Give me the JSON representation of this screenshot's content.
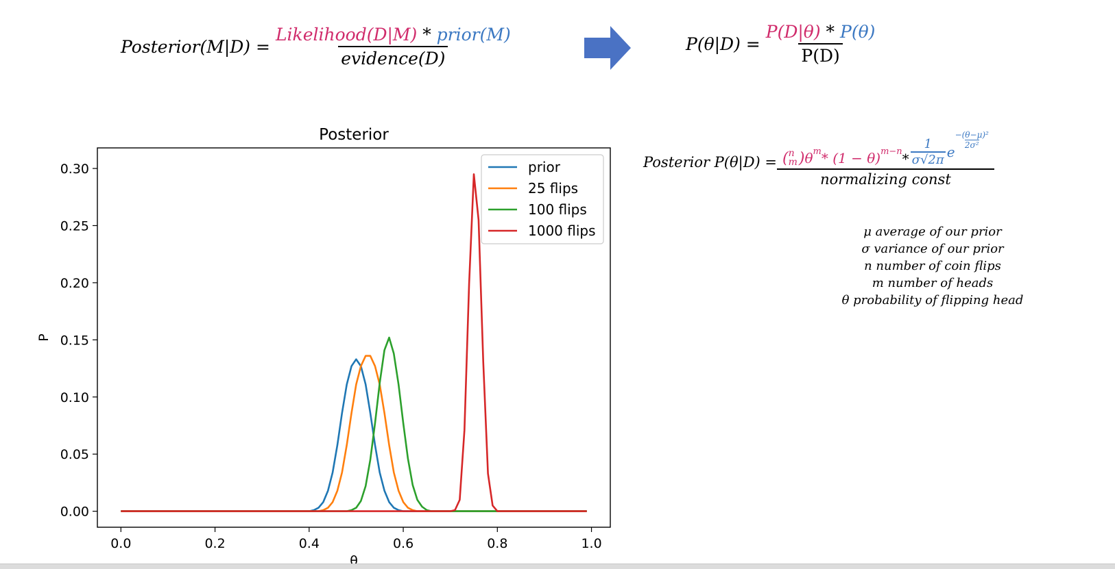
{
  "equations": {
    "left": {
      "lhs": "Posterior(M|D) =",
      "likelihood": "Likelihood(D|M)",
      "times": " * ",
      "prior": "prior(M)",
      "denominator": "evidence(D)"
    },
    "right": {
      "lhs": "P(θ|D) =",
      "p_d_theta": "P(D|θ)",
      "times": " * ",
      "p_theta": "P(θ)",
      "denominator": "P(D)"
    },
    "posterior_formula": {
      "lhs": "Posterior P(θ|D) =",
      "binom_top": "n",
      "binom_bottom": "m",
      "theta_m": "θ",
      "sup_m": "m",
      "times1": " * (1 − θ)",
      "sup_mn": "m−n",
      "times2": " * ",
      "frac_num": "1",
      "frac_den": "σ√2π",
      "e": "e",
      "exp_num": "−(θ−μ)²",
      "exp_den": "2σ²",
      "denominator": "normalizing const"
    },
    "definitions": [
      "μ average of our prior",
      "σ variance of our prior",
      "n number of coin flips",
      "m number of heads",
      "θ probability of flipping head"
    ]
  },
  "colors": {
    "pink": "#d02b6b",
    "blue": "#3b78c2",
    "arrow": "#4a72c4"
  },
  "chart_data": {
    "type": "line",
    "title": "Posterior",
    "xlabel": "θ",
    "ylabel": "P",
    "xlim": [
      -0.05,
      1.04
    ],
    "ylim": [
      -0.014,
      0.318
    ],
    "xticks": [
      0.0,
      0.2,
      0.4,
      0.6,
      0.8,
      1.0
    ],
    "xtick_labels": [
      "0.0",
      "0.2",
      "0.4",
      "0.6",
      "0.8",
      "1.0"
    ],
    "yticks": [
      0.0,
      0.05,
      0.1,
      0.15,
      0.2,
      0.25,
      0.3
    ],
    "ytick_labels": [
      "0.00",
      "0.05",
      "0.10",
      "0.15",
      "0.20",
      "0.25",
      "0.30"
    ],
    "grid": false,
    "legend_position": "top-right",
    "series": [
      {
        "name": "prior",
        "color": "#1f77b4",
        "x": [
          0.0,
          0.4,
          0.41,
          0.42,
          0.43,
          0.44,
          0.45,
          0.46,
          0.47,
          0.48,
          0.49,
          0.5,
          0.51,
          0.52,
          0.53,
          0.54,
          0.55,
          0.56,
          0.57,
          0.58,
          0.59,
          0.6,
          0.99
        ],
        "y": [
          0.0,
          0.0,
          0.001,
          0.003,
          0.008,
          0.018,
          0.034,
          0.058,
          0.086,
          0.111,
          0.127,
          0.133,
          0.127,
          0.111,
          0.086,
          0.058,
          0.034,
          0.018,
          0.008,
          0.003,
          0.001,
          0.0,
          0.0
        ]
      },
      {
        "name": "25 flips",
        "color": "#ff7f0e",
        "x": [
          0.0,
          0.42,
          0.43,
          0.44,
          0.45,
          0.46,
          0.47,
          0.48,
          0.49,
          0.5,
          0.51,
          0.52,
          0.53,
          0.54,
          0.55,
          0.56,
          0.57,
          0.58,
          0.59,
          0.6,
          0.61,
          0.62,
          0.63,
          0.99
        ],
        "y": [
          0.0,
          0.0,
          0.001,
          0.003,
          0.008,
          0.018,
          0.034,
          0.058,
          0.086,
          0.111,
          0.127,
          0.136,
          0.136,
          0.127,
          0.111,
          0.086,
          0.058,
          0.034,
          0.018,
          0.008,
          0.003,
          0.001,
          0.0,
          0.0
        ]
      },
      {
        "name": "100 flips",
        "color": "#2ca02c",
        "x": [
          0.0,
          0.48,
          0.49,
          0.5,
          0.51,
          0.52,
          0.53,
          0.54,
          0.55,
          0.56,
          0.57,
          0.58,
          0.59,
          0.6,
          0.61,
          0.62,
          0.63,
          0.64,
          0.65,
          0.66,
          0.67,
          0.99
        ],
        "y": [
          0.0,
          0.0,
          0.001,
          0.003,
          0.009,
          0.022,
          0.045,
          0.077,
          0.112,
          0.141,
          0.152,
          0.138,
          0.111,
          0.077,
          0.046,
          0.023,
          0.01,
          0.004,
          0.001,
          0.0,
          0.0,
          0.0
        ]
      },
      {
        "name": "1000 flips",
        "color": "#d62728",
        "x": [
          0.0,
          0.7,
          0.71,
          0.72,
          0.73,
          0.74,
          0.75,
          0.76,
          0.77,
          0.78,
          0.79,
          0.8,
          0.99
        ],
        "y": [
          0.0,
          0.0,
          0.001,
          0.01,
          0.071,
          0.199,
          0.295,
          0.255,
          0.131,
          0.033,
          0.005,
          0.0,
          0.0
        ]
      }
    ]
  }
}
